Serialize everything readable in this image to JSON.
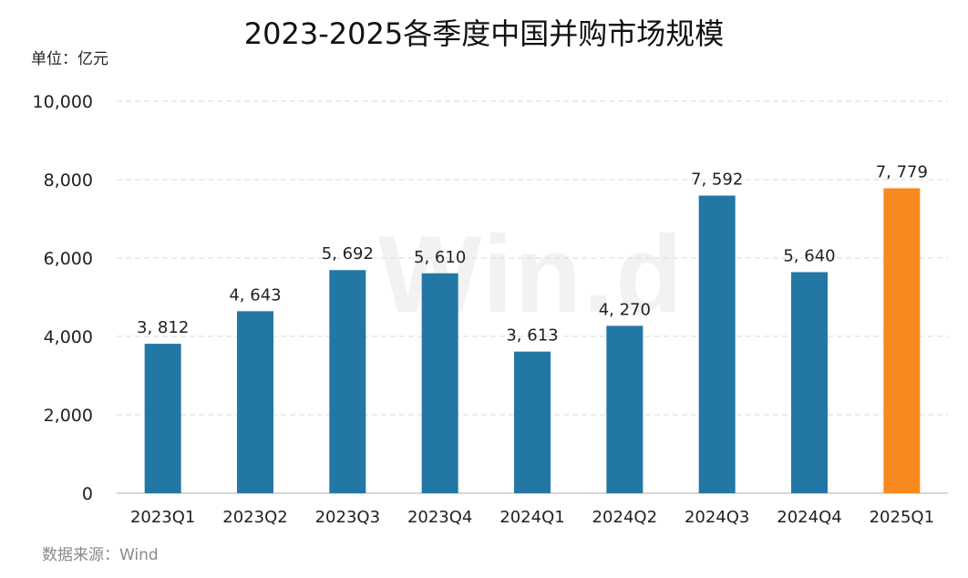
{
  "title": "2023-2025各季度中国并购市场规模",
  "unit_label": "单位：亿元",
  "source": "数据来源：Wind",
  "watermark": "Win.d",
  "colors": {
    "bar": "#2377A4",
    "highlight": "#F7891E",
    "grid": "#d9d9d9",
    "axis": "#bfbfbf",
    "text": "#222222"
  },
  "chart_data": {
    "type": "bar",
    "categories": [
      "2023Q1",
      "2023Q2",
      "2023Q3",
      "2023Q4",
      "2024Q1",
      "2024Q2",
      "2024Q3",
      "2024Q4",
      "2025Q1"
    ],
    "values": [
      3812,
      4643,
      5692,
      5610,
      3613,
      4270,
      7592,
      5640,
      7779
    ],
    "data_labels": [
      "3, 812",
      "4, 643",
      "5, 692",
      "5, 610",
      "3, 613",
      "4, 270",
      "7, 592",
      "5, 640",
      "7, 779"
    ],
    "highlight_category": "2025Q1",
    "ylim": [
      0,
      10000
    ],
    "yticks": [
      0,
      2000,
      4000,
      6000,
      8000,
      10000
    ],
    "ytick_labels": [
      "0",
      "2,000",
      "4,000",
      "6,000",
      "8,000",
      "10,000"
    ],
    "ylabel": "单位：亿元",
    "xlabel": "",
    "grid": true,
    "legend": "none"
  }
}
